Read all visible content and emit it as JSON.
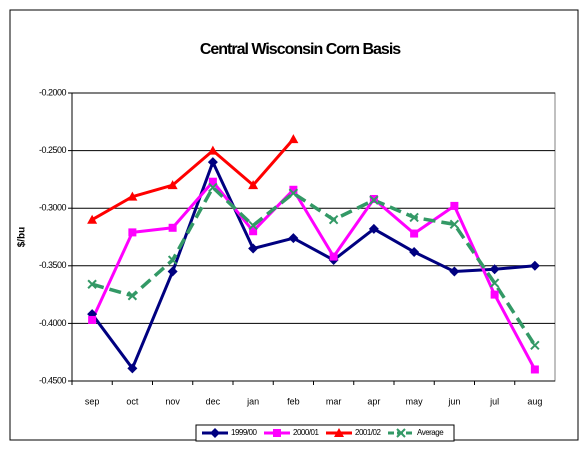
{
  "chart_data": {
    "type": "line",
    "title": "Central Wisconsin Corn Basis",
    "y_label": "$/bu",
    "categories": [
      "sep",
      "oct",
      "nov",
      "dec",
      "jan",
      "feb",
      "mar",
      "apr",
      "may",
      "jun",
      "jul",
      "aug"
    ],
    "series": [
      {
        "name": "1999/00",
        "color": "#000080",
        "marker": "diamond",
        "dashed": false,
        "values": [
          -0.392,
          -0.439,
          -0.355,
          -0.26,
          -0.335,
          -0.326,
          -0.345,
          -0.318,
          -0.338,
          -0.355,
          -0.353,
          -0.35
        ]
      },
      {
        "name": "2000/01",
        "color": "#ff00ff",
        "marker": "square",
        "dashed": false,
        "values": [
          -0.397,
          -0.321,
          -0.317,
          -0.277,
          -0.32,
          -0.284,
          -0.342,
          -0.292,
          -0.322,
          -0.298,
          -0.375,
          -0.44
        ]
      },
      {
        "name": "2001/02",
        "color": "#ff0000",
        "marker": "triangle",
        "dashed": false,
        "values": [
          -0.31,
          -0.29,
          -0.28,
          -0.25,
          -0.28,
          -0.24,
          null,
          null,
          null,
          null,
          null,
          null
        ]
      },
      {
        "name": "Average",
        "color": "#339966",
        "marker": "cross",
        "dashed": true,
        "values": [
          -0.366,
          -0.376,
          -0.345,
          -0.282,
          -0.315,
          -0.287,
          -0.31,
          -0.293,
          -0.308,
          -0.314,
          -0.365,
          -0.419
        ]
      }
    ],
    "ylim": [
      -0.45,
      -0.2
    ],
    "yticks": [
      {
        "value": -0.45,
        "label": "-0.4500"
      },
      {
        "value": -0.4,
        "label": "-0.4000"
      },
      {
        "value": -0.35,
        "label": "-0.3500"
      },
      {
        "value": -0.3,
        "label": "-0.3000"
      },
      {
        "value": -0.25,
        "label": "-0.2500"
      },
      {
        "value": -0.2,
        "label": "-0.2000"
      }
    ],
    "grid": true,
    "legend": "bottom"
  }
}
